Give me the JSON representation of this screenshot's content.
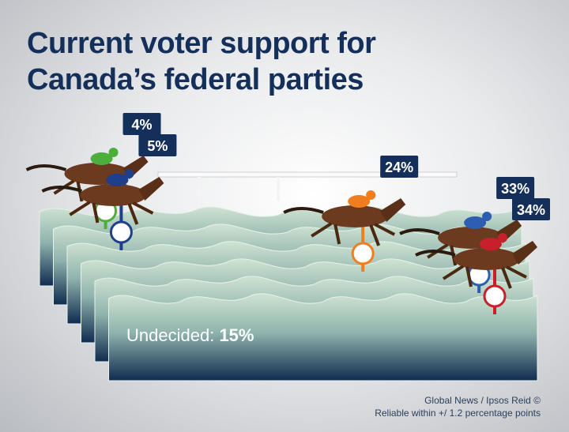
{
  "chart_data": {
    "type": "race",
    "title": "Current voter support for Canada’s federal parties",
    "categories": [
      null,
      null,
      null,
      null,
      null
    ],
    "series": [
      {
        "color": "#4caf3c",
        "values": [
          4,
          null,
          null,
          null,
          null
        ],
        "value_labels": [
          "4%",
          null,
          null,
          null,
          null
        ]
      },
      {
        "color": "#1f3f8a",
        "values": [
          null,
          5,
          null,
          null,
          null
        ],
        "value_labels": [
          null,
          "5%",
          null,
          null,
          null
        ]
      },
      {
        "color": "#f07d1e",
        "values": [
          null,
          null,
          24,
          null,
          null
        ],
        "value_labels": [
          null,
          null,
          "24%",
          null,
          null
        ]
      },
      {
        "color": "#2c5fb0",
        "values": [
          null,
          null,
          null,
          33,
          null
        ],
        "value_labels": [
          null,
          null,
          null,
          "33%",
          null
        ]
      },
      {
        "color": "#c8202a",
        "values": [
          null,
          null,
          null,
          null,
          34
        ],
        "value_labels": [
          null,
          null,
          null,
          null,
          "34%"
        ]
      }
    ],
    "undecided": {
      "label": "Undecided:",
      "value": 15,
      "value_label": "15%"
    },
    "source": "Global News / Ipsos Reid ©",
    "note": "Reliable within +/ 1.2 percentage points"
  }
}
